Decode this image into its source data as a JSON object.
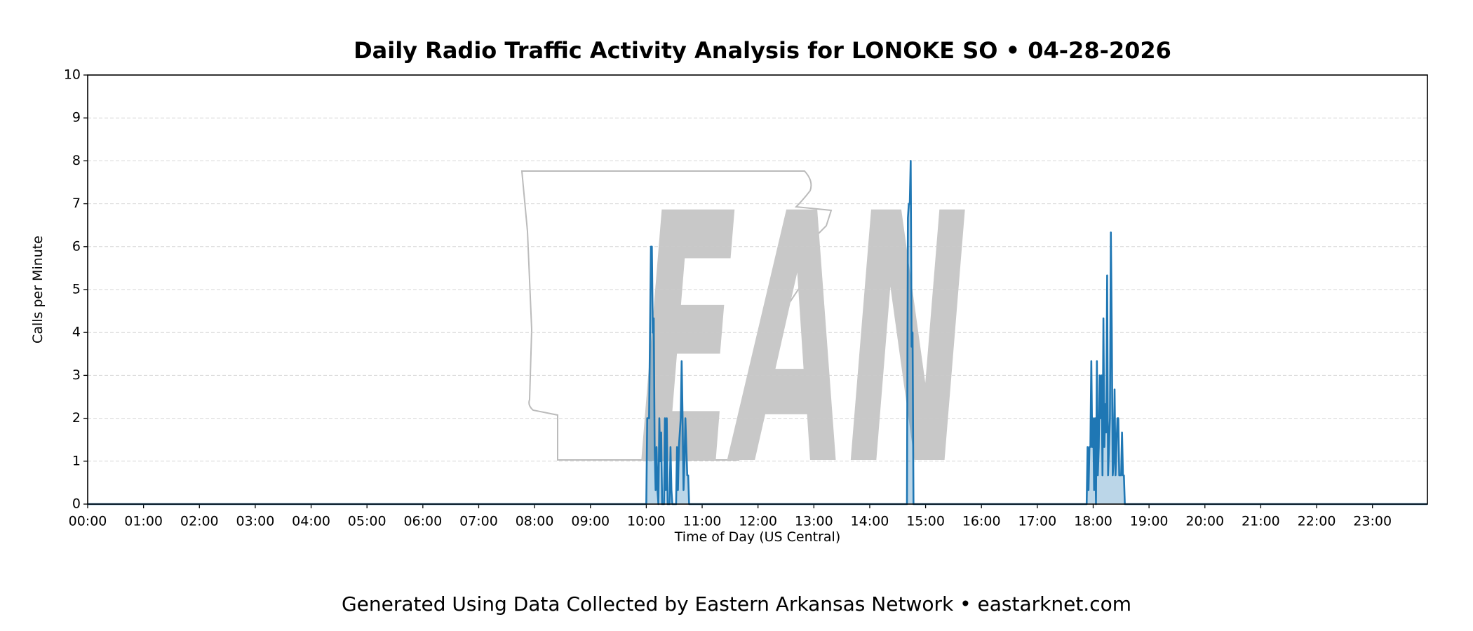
{
  "chart_data": {
    "type": "area-line",
    "title": "Daily Radio Traffic Activity Analysis for LONOKE SO • 04-28-2026",
    "x_label": "Time of Day (US Central)",
    "y_label": "Calls per Minute",
    "footer": "Generated Using Data Collected by Eastern Arkansas Network • eastarknet.com",
    "watermark": "EAN",
    "xlim": [
      0,
      1439
    ],
    "ylim": [
      0,
      10
    ],
    "yticks": [
      0,
      1,
      2,
      3,
      4,
      5,
      6,
      7,
      8,
      9,
      10
    ],
    "xticks": [
      {
        "value": 0,
        "label": "00:00"
      },
      {
        "value": 60,
        "label": "01:00"
      },
      {
        "value": 120,
        "label": "02:00"
      },
      {
        "value": 180,
        "label": "03:00"
      },
      {
        "value": 240,
        "label": "04:00"
      },
      {
        "value": 300,
        "label": "05:00"
      },
      {
        "value": 360,
        "label": "06:00"
      },
      {
        "value": 420,
        "label": "07:00"
      },
      {
        "value": 480,
        "label": "08:00"
      },
      {
        "value": 540,
        "label": "09:00"
      },
      {
        "value": 600,
        "label": "10:00"
      },
      {
        "value": 660,
        "label": "11:00"
      },
      {
        "value": 720,
        "label": "12:00"
      },
      {
        "value": 780,
        "label": "13:00"
      },
      {
        "value": 840,
        "label": "14:00"
      },
      {
        "value": 900,
        "label": "15:00"
      },
      {
        "value": 960,
        "label": "16:00"
      },
      {
        "value": 1020,
        "label": "17:00"
      },
      {
        "value": 1080,
        "label": "18:00"
      },
      {
        "value": 1140,
        "label": "19:00"
      },
      {
        "value": 1200,
        "label": "20:00"
      },
      {
        "value": 1260,
        "label": "21:00"
      },
      {
        "value": 1320,
        "label": "22:00"
      },
      {
        "value": 1380,
        "label": "23:00"
      }
    ],
    "grid": true,
    "color": "#1f77b4",
    "x": [
      0,
      600,
      601,
      603,
      604,
      605,
      606,
      607,
      608,
      609,
      610,
      611,
      612,
      613,
      614,
      615,
      616,
      617,
      619,
      620,
      621,
      622,
      623,
      625,
      626,
      627,
      628,
      632,
      633,
      634,
      635,
      636,
      637,
      638,
      639,
      640,
      641,
      642,
      643,
      644,
      645,
      646,
      880,
      881,
      882,
      883,
      884,
      885,
      886,
      887,
      1073,
      1074,
      1075,
      1076,
      1077,
      1078,
      1079,
      1080,
      1081,
      1082,
      1083,
      1084,
      1085,
      1086,
      1087,
      1088,
      1089,
      1090,
      1091,
      1092,
      1093,
      1094,
      1095,
      1096,
      1097,
      1098,
      1099,
      1100,
      1101,
      1102,
      1103,
      1104,
      1105,
      1106,
      1107,
      1108,
      1109,
      1110,
      1111,
      1112,
      1113,
      1114,
      1439
    ],
    "values": [
      0,
      0,
      2,
      2,
      4,
      6,
      6,
      4,
      4.33,
      1.33,
      0.33,
      1.33,
      0.33,
      0,
      2,
      1,
      1.67,
      0,
      0,
      2,
      0.33,
      2,
      0,
      0,
      1.33,
      0.33,
      0,
      0,
      1.33,
      0.33,
      1.33,
      1.67,
      2,
      3.33,
      2,
      0.33,
      1,
      2,
      1.33,
      0.67,
      0.67,
      0,
      0,
      6.67,
      7,
      7,
      8,
      3.67,
      4,
      0,
      0,
      1.33,
      0.33,
      1.33,
      1.33,
      3.33,
      1.33,
      2,
      0.33,
      2,
      0,
      3.33,
      0.67,
      1.33,
      3,
      2,
      3,
      0.67,
      4.33,
      1.33,
      2.33,
      1.67,
      5.33,
      0.67,
      1.33,
      2,
      6.33,
      4,
      0.67,
      1,
      2.67,
      0.67,
      1.33,
      2,
      2,
      0.67,
      0.67,
      0.67,
      1.67,
      0.67,
      0.67,
      0,
      0
    ]
  }
}
